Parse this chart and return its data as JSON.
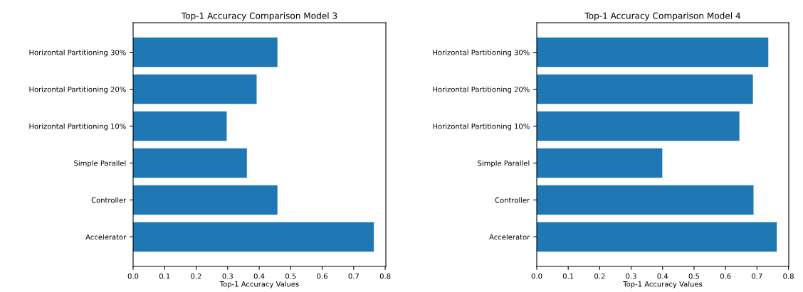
{
  "chart_data": [
    {
      "type": "bar",
      "orientation": "horizontal",
      "title": "Top-1 Accuracy Comparison Model 3",
      "xlabel": "Top-1 Accuracy Values",
      "categories": [
        "Horizontal Partitioning 30%",
        "Horizontal Partitioning 20%",
        "Horizontal Partitioning 10%",
        "Simple Parallel",
        "Controller",
        "Accelerator"
      ],
      "values": [
        0.458,
        0.392,
        0.297,
        0.361,
        0.458,
        0.764
      ],
      "color": "#1f77b4",
      "xlim": [
        0,
        0.802
      ],
      "xticks": [
        {
          "value": 0,
          "label": "0.0"
        },
        0.1,
        0.2,
        0.3,
        0.4,
        0.5,
        0.6,
        0.7,
        0.8
      ],
      "grid": false,
      "legend": false
    },
    {
      "type": "bar",
      "orientation": "horizontal",
      "title": "Top-1 Accuracy Comparison Model 4",
      "xlabel": "Top-1 Accuracy Values",
      "categories": [
        "Horizontal Partitioning 30%",
        "Horizontal Partitioning 20%",
        "Horizontal Partitioning 10%",
        "Simple Parallel",
        "Controller",
        "Accelerator"
      ],
      "values": [
        0.736,
        0.687,
        0.644,
        0.399,
        0.689,
        0.763
      ],
      "color": "#1f77b4",
      "xlim": [
        0,
        0.801
      ],
      "xticks": [
        {
          "value": 0,
          "label": "0.0"
        },
        0.1,
        0.2,
        0.3,
        0.4,
        0.5,
        0.6,
        0.7,
        0.8
      ],
      "grid": false,
      "legend": false
    }
  ]
}
